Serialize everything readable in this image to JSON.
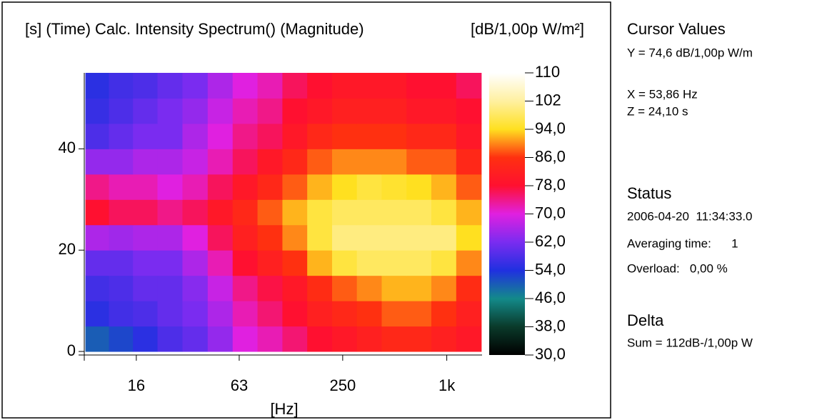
{
  "chart_data": {
    "type": "heatmap",
    "title": "Calc. Intensity Spectrum() (Magnitude)",
    "y_label": "[s] (Time)",
    "z_label": "[dB/1,00p W/m²]",
    "x_label": "[Hz]",
    "log_x": true,
    "x": [
      9.5,
      13,
      18,
      25,
      35,
      49,
      68,
      95,
      132,
      184,
      256,
      356,
      496,
      690,
      960,
      1340
    ],
    "y": [
      2.5,
      7.5,
      12.5,
      17.5,
      22.5,
      27.5,
      32.5,
      37.5,
      42.5,
      47.5,
      52.5
    ],
    "z": [
      [
        50,
        52,
        55,
        58,
        60,
        64,
        70,
        72,
        75,
        78,
        80,
        82,
        84,
        84,
        82,
        80
      ],
      [
        55,
        57,
        58,
        60,
        62,
        66,
        72,
        75,
        78,
        82,
        84,
        86,
        88,
        88,
        86,
        82
      ],
      [
        57,
        58,
        60,
        60,
        63,
        68,
        74,
        77,
        80,
        85,
        88,
        90,
        92,
        92,
        90,
        85
      ],
      [
        60,
        60,
        62,
        62,
        66,
        72,
        78,
        82,
        86,
        92,
        96,
        98,
        98,
        98,
        96,
        90
      ],
      [
        66,
        65,
        66,
        66,
        70,
        76,
        82,
        86,
        90,
        96,
        100,
        100,
        100,
        100,
        100,
        94
      ],
      [
        78,
        76,
        76,
        74,
        76,
        80,
        84,
        88,
        92,
        96,
        98,
        98,
        98,
        98,
        96,
        92
      ],
      [
        74,
        72,
        72,
        70,
        72,
        76,
        80,
        84,
        88,
        92,
        94,
        96,
        95,
        94,
        92,
        88
      ],
      [
        64,
        64,
        66,
        66,
        68,
        72,
        76,
        80,
        84,
        88,
        90,
        90,
        90,
        88,
        88,
        84
      ],
      [
        58,
        60,
        62,
        62,
        66,
        70,
        74,
        76,
        80,
        84,
        86,
        86,
        86,
        84,
        84,
        80
      ],
      [
        56,
        58,
        60,
        62,
        64,
        68,
        72,
        74,
        78,
        80,
        82,
        82,
        82,
        80,
        80,
        78
      ],
      [
        55,
        57,
        58,
        60,
        62,
        66,
        70,
        72,
        76,
        78,
        80,
        80,
        80,
        78,
        78,
        76
      ]
    ],
    "xlim": [
      8,
      1600
    ],
    "xticks": [
      16,
      63,
      250,
      {
        "value": 1000,
        "label": "1k"
      }
    ],
    "ylim": [
      -0.7,
      55
    ],
    "yticks": [
      0,
      20,
      40
    ],
    "zlim": [
      30,
      110
    ],
    "zticks": [
      110,
      102,
      {
        "value": 94,
        "label": "94,0"
      },
      {
        "value": 86,
        "label": "86,0"
      },
      {
        "value": 78,
        "label": "78,0"
      },
      {
        "value": 70,
        "label": "70,0"
      },
      {
        "value": 62,
        "label": "62,0"
      },
      {
        "value": 54,
        "label": "54,0"
      },
      {
        "value": 46,
        "label": "46,0"
      },
      {
        "value": 38,
        "label": "38,0"
      },
      {
        "value": 30,
        "label": "30,0"
      }
    ],
    "colors": [
      "#000000",
      "#0a3a2a",
      "#138a8a",
      "#2030e0",
      "#7a2cf0",
      "#e020e0",
      "#ff1030",
      "#ff3010",
      "#ffe020",
      "#fff0a0",
      "#ffffff"
    ]
  },
  "panel": {
    "cursor_heading": "Cursor Values",
    "cursor_y": "Y = 74,6 dB/1,00p W/m",
    "cursor_x": "X = 53,86 Hz",
    "cursor_z": "Z = 24,10 s",
    "status_heading": "Status",
    "status_time": "2006-04-20  11:34:33.0",
    "status_averaging": "Averaging time:      1",
    "status_overload": "Overload:   0,00 %",
    "delta_heading": "Delta",
    "delta_sum": "Sum = 112dB-/1,00p W"
  }
}
